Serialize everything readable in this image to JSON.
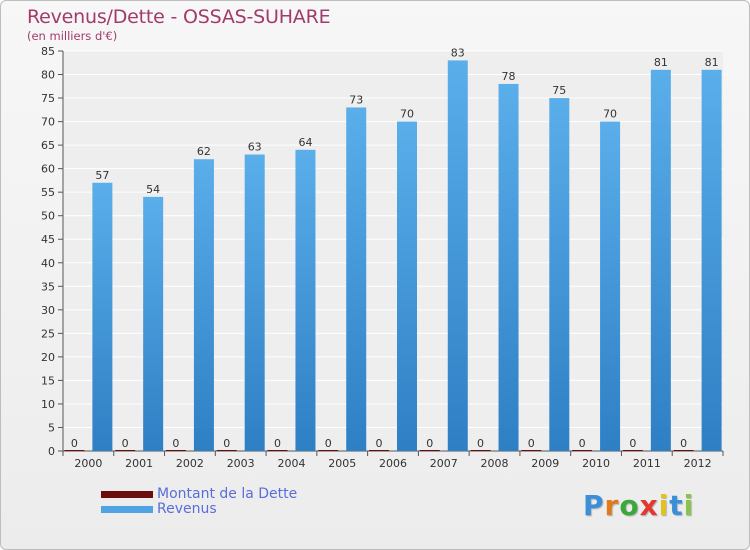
{
  "chart_data": {
    "type": "bar",
    "title": "Revenus/Dette - OSSAS-SUHARE",
    "subtitle": "(en milliers d'€)",
    "categories": [
      "2000",
      "2001",
      "2002",
      "2003",
      "2004",
      "2005",
      "2006",
      "2007",
      "2008",
      "2009",
      "2010",
      "2011",
      "2012"
    ],
    "series": [
      {
        "name": "Montant de la Dette",
        "color": "#6b0d0d",
        "values": [
          0,
          0,
          0,
          0,
          0,
          0,
          0,
          0,
          0,
          0,
          0,
          0,
          0
        ]
      },
      {
        "name": "Revenus",
        "color": "#4fa3e3",
        "values": [
          57,
          54,
          62,
          63,
          64,
          73,
          70,
          83,
          78,
          75,
          70,
          81,
          81
        ]
      }
    ],
    "ylim": [
      0,
      85
    ],
    "yticks": [
      0,
      5,
      10,
      15,
      20,
      25,
      30,
      35,
      40,
      45,
      50,
      55,
      60,
      65,
      70,
      75,
      80,
      85
    ],
    "grid": true,
    "legend": "bottom-left"
  },
  "logo": {
    "letters": [
      "P",
      "r",
      "o",
      "x",
      "i",
      "t",
      "i"
    ],
    "colors": [
      "#3a8fd8",
      "#e07a1c",
      "#3aa83a",
      "#e2392e",
      "#e2c21c",
      "#3a8fd8",
      "#8bc34a"
    ]
  }
}
